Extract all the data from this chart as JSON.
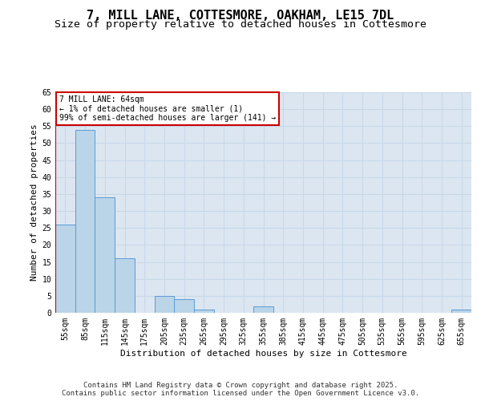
{
  "title_line1": "7, MILL LANE, COTTESMORE, OAKHAM, LE15 7DL",
  "title_line2": "Size of property relative to detached houses in Cottesmore",
  "xlabel": "Distribution of detached houses by size in Cottesmore",
  "ylabel": "Number of detached properties",
  "categories": [
    "55sqm",
    "85sqm",
    "115sqm",
    "145sqm",
    "175sqm",
    "205sqm",
    "235sqm",
    "265sqm",
    "295sqm",
    "325sqm",
    "355sqm",
    "385sqm",
    "415sqm",
    "445sqm",
    "475sqm",
    "505sqm",
    "535sqm",
    "565sqm",
    "595sqm",
    "625sqm",
    "655sqm"
  ],
  "values": [
    26,
    54,
    34,
    16,
    0,
    5,
    4,
    1,
    0,
    0,
    2,
    0,
    0,
    0,
    0,
    0,
    0,
    0,
    0,
    0,
    1
  ],
  "bar_color": "#bad4e8",
  "bar_edge_color": "#5b9bd5",
  "bg_color": "#dce6f1",
  "grid_color": "#c8d8e8",
  "annotation_box_text": "7 MILL LANE: 64sqm\n← 1% of detached houses are smaller (1)\n99% of semi-detached houses are larger (141) →",
  "annotation_box_color": "#ffffff",
  "annotation_box_edge_color": "#cc0000",
  "ylim": [
    0,
    65
  ],
  "yticks": [
    0,
    5,
    10,
    15,
    20,
    25,
    30,
    35,
    40,
    45,
    50,
    55,
    60,
    65
  ],
  "footer_text": "Contains HM Land Registry data © Crown copyright and database right 2025.\nContains public sector information licensed under the Open Government Licence v3.0.",
  "title_fontsize": 11,
  "subtitle_fontsize": 9.5,
  "axis_label_fontsize": 8,
  "tick_fontsize": 7,
  "footer_fontsize": 6.5,
  "annotation_fontsize": 7
}
